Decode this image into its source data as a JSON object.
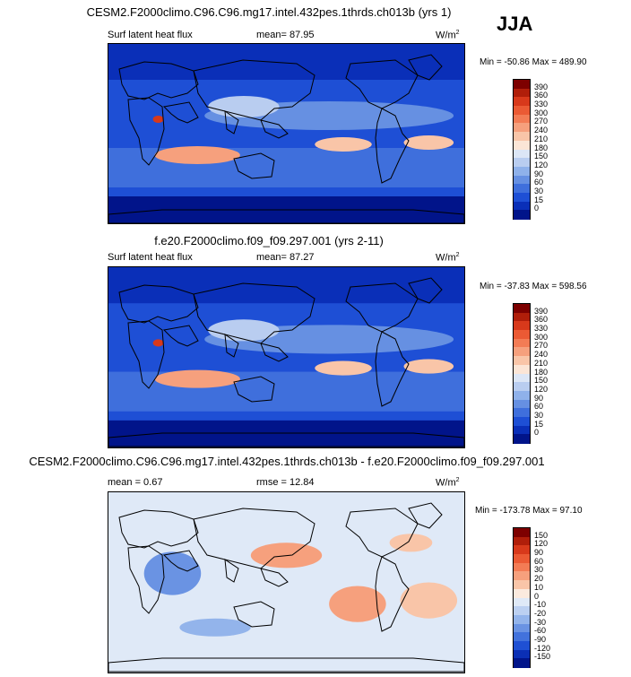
{
  "season": "JJA",
  "panels": [
    {
      "title": "CESM2.F2000climo.C96.C96.mg17.intel.432pes.1thrds.ch013b (yrs 1)",
      "variable": "Surf latent heat flux",
      "stat": "mean=  87.95",
      "units": "W/m",
      "units_exp": "2",
      "minmax": "Min = -50.86 Max = 489.90",
      "colorbar": {
        "labels": [
          "390",
          "360",
          "330",
          "300",
          "270",
          "240",
          "210",
          "180",
          "150",
          "120",
          "90",
          "60",
          "30",
          "15",
          "0"
        ],
        "colors": [
          "#7d0000",
          "#b01e0a",
          "#d8391b",
          "#eb5a34",
          "#f37c55",
          "#f6a07d",
          "#f9c5a8",
          "#fbe5d6",
          "#dce6f6",
          "#b9cdf0",
          "#8fb1ea",
          "#6690e2",
          "#3f6fdc",
          "#1e4fd5",
          "#0a2fb8",
          "#01148a"
        ]
      }
    },
    {
      "title": "f.e20.F2000climo.f09_f09.297.001 (yrs 2-11)",
      "variable": "Surf latent heat flux",
      "stat": "mean=  87.27",
      "units": "W/m",
      "units_exp": "2",
      "minmax": "Min = -37.83 Max = 598.56",
      "colorbar": {
        "labels": [
          "390",
          "360",
          "330",
          "300",
          "270",
          "240",
          "210",
          "180",
          "150",
          "120",
          "90",
          "60",
          "30",
          "15",
          "0"
        ],
        "colors": [
          "#7d0000",
          "#b01e0a",
          "#d8391b",
          "#eb5a34",
          "#f37c55",
          "#f6a07d",
          "#f9c5a8",
          "#fbe5d6",
          "#dce6f6",
          "#b9cdf0",
          "#8fb1ea",
          "#6690e2",
          "#3f6fdc",
          "#1e4fd5",
          "#0a2fb8",
          "#01148a"
        ]
      }
    },
    {
      "title": "CESM2.F2000climo.C96.C96.mg17.intel.432pes.1thrds.ch013b - f.e20.F2000climo.f09_f09.297.001",
      "stat_mean": "mean =   0.67",
      "stat_rmse": "rmse =  12.84",
      "units": "W/m",
      "units_exp": "2",
      "minmax": "Min = -173.78 Max =  97.10",
      "colorbar": {
        "labels": [
          "150",
          "120",
          "90",
          "60",
          "30",
          "20",
          "10",
          "0",
          "-10",
          "-20",
          "-30",
          "-60",
          "-90",
          "-120",
          "-150"
        ],
        "colors": [
          "#7d0000",
          "#b01e0a",
          "#d8391b",
          "#eb5a34",
          "#f37c55",
          "#f6a07d",
          "#f9c5a8",
          "#fbeade",
          "#dfe9f7",
          "#bcd0f1",
          "#93b4eb",
          "#6a93e3",
          "#4272dc",
          "#1f50d3",
          "#0b2fb5",
          "#01148a"
        ]
      }
    }
  ],
  "chart_data": [
    {
      "type": "heatmap",
      "title": "CESM2.F2000climo.C96.C96.mg17.intel.432pes.1thrds.ch013b (yrs 1)",
      "variable": "Surf latent heat flux",
      "units": "W/m2",
      "mean": 87.95,
      "min": -50.86,
      "max": 489.9,
      "contour_levels": [
        0,
        15,
        30,
        60,
        90,
        120,
        150,
        180,
        210,
        240,
        270,
        300,
        330,
        360,
        390
      ],
      "projection": "global lat-lon map"
    },
    {
      "type": "heatmap",
      "title": "f.e20.F2000climo.f09_f09.297.001 (yrs 2-11)",
      "variable": "Surf latent heat flux",
      "units": "W/m2",
      "mean": 87.27,
      "min": -37.83,
      "max": 598.56,
      "contour_levels": [
        0,
        15,
        30,
        60,
        90,
        120,
        150,
        180,
        210,
        240,
        270,
        300,
        330,
        360,
        390
      ],
      "projection": "global lat-lon map"
    },
    {
      "type": "heatmap",
      "title": "CESM2.F2000climo.C96.C96.mg17.intel.432pes.1thrds.ch013b - f.e20.F2000climo.f09_f09.297.001",
      "units": "W/m2",
      "mean": 0.67,
      "rmse": 12.84,
      "min": -173.78,
      "max": 97.1,
      "contour_levels": [
        -150,
        -120,
        -90,
        -60,
        -30,
        -20,
        -10,
        0,
        10,
        20,
        30,
        60,
        90,
        120,
        150
      ],
      "projection": "global lat-lon map"
    }
  ]
}
